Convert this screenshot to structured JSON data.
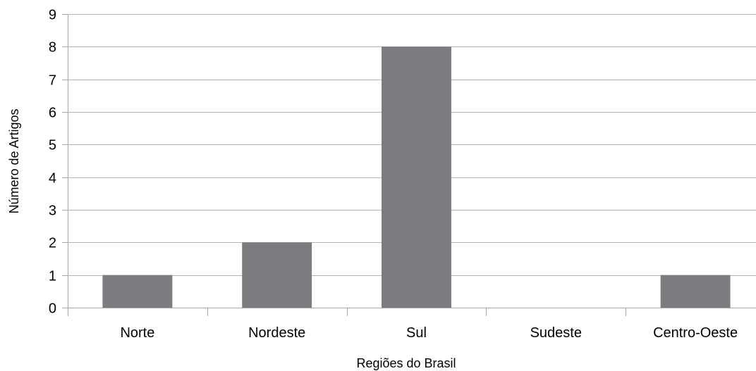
{
  "chart_data": {
    "type": "bar",
    "title": "",
    "categories": [
      "Norte",
      "Nordeste",
      "Sul",
      "Sudeste",
      "Centro-Oeste"
    ],
    "values": [
      1,
      2,
      8,
      0,
      1
    ],
    "xlabel": "Regiões do Brasil",
    "ylabel": "Número de Artigos",
    "ylim": [
      0,
      9
    ],
    "yticks": [
      "0",
      "1",
      "2",
      "3",
      "4",
      "5",
      "6",
      "7",
      "8",
      "9"
    ],
    "grid": true,
    "legend": "none",
    "bar_color": "#7b7b80",
    "grid_color": "#b3b3b3",
    "axis_color": "#a6a6a6"
  }
}
